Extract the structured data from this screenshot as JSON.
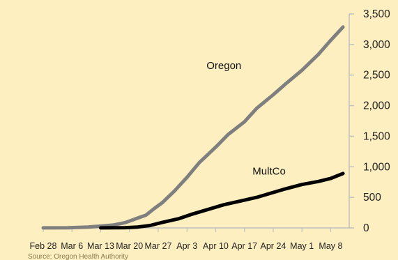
{
  "chart_data": {
    "type": "line",
    "title": "",
    "xlabel": "",
    "ylabel": "",
    "x_range": [
      "2020-02-28",
      "2020-05-12"
    ],
    "ylim": [
      0,
      3500
    ],
    "y_ticks": [
      0,
      500,
      1000,
      1500,
      2000,
      2500,
      3000,
      3500
    ],
    "y_tick_labels": [
      "0",
      "500",
      "1,000",
      "1,500",
      "2,000",
      "2,500",
      "3,000",
      "3,500"
    ],
    "x_ticks": [
      "2020-02-28",
      "2020-03-06",
      "2020-03-13",
      "2020-03-20",
      "2020-03-27",
      "2020-04-03",
      "2020-04-10",
      "2020-04-17",
      "2020-04-24",
      "2020-05-01",
      "2020-05-08"
    ],
    "x_tick_labels": [
      "Feb 28",
      "Mar 6",
      "Mar 13",
      "Mar 20",
      "Mar 27",
      "Apr 3",
      "Apr 10",
      "Apr 17",
      "Apr 24",
      "May 1",
      "May 8"
    ],
    "y_axis_side": "right",
    "grid": false,
    "legend": "none",
    "series": [
      {
        "name": "Oregon",
        "color": "#7f7f7f",
        "points": [
          [
            "2020-02-28",
            1
          ],
          [
            "2020-03-05",
            3
          ],
          [
            "2020-03-10",
            15
          ],
          [
            "2020-03-13",
            30
          ],
          [
            "2020-03-16",
            47
          ],
          [
            "2020-03-19",
            88
          ],
          [
            "2020-03-22",
            161
          ],
          [
            "2020-03-24",
            209
          ],
          [
            "2020-03-26",
            316
          ],
          [
            "2020-03-28",
            414
          ],
          [
            "2020-03-31",
            606
          ],
          [
            "2020-04-03",
            826
          ],
          [
            "2020-04-06",
            1068
          ],
          [
            "2020-04-10",
            1321
          ],
          [
            "2020-04-13",
            1527
          ],
          [
            "2020-04-17",
            1736
          ],
          [
            "2020-04-20",
            1957
          ],
          [
            "2020-04-24",
            2177
          ],
          [
            "2020-04-27",
            2354
          ],
          [
            "2020-05-01",
            2579
          ],
          [
            "2020-05-05",
            2839
          ],
          [
            "2020-05-08",
            3068
          ],
          [
            "2020-05-11",
            3286
          ]
        ]
      },
      {
        "name": "MultCo",
        "color": "#000000",
        "points": [
          [
            "2020-03-13",
            1
          ],
          [
            "2020-03-19",
            5
          ],
          [
            "2020-03-22",
            15
          ],
          [
            "2020-03-25",
            40
          ],
          [
            "2020-03-28",
            90
          ],
          [
            "2020-04-01",
            150
          ],
          [
            "2020-04-04",
            220
          ],
          [
            "2020-04-08",
            300
          ],
          [
            "2020-04-12",
            380
          ],
          [
            "2020-04-16",
            440
          ],
          [
            "2020-04-20",
            500
          ],
          [
            "2020-04-24",
            580
          ],
          [
            "2020-04-27",
            640
          ],
          [
            "2020-05-01",
            710
          ],
          [
            "2020-05-05",
            760
          ],
          [
            "2020-05-08",
            810
          ],
          [
            "2020-05-11",
            890
          ]
        ]
      }
    ],
    "annotations": [
      {
        "text": "Oregon",
        "x": "2020-04-12",
        "y": 2600
      },
      {
        "text": "MultCo",
        "x": "2020-04-23",
        "y": 870
      }
    ],
    "source": "Source: Oregon Health Authority"
  }
}
